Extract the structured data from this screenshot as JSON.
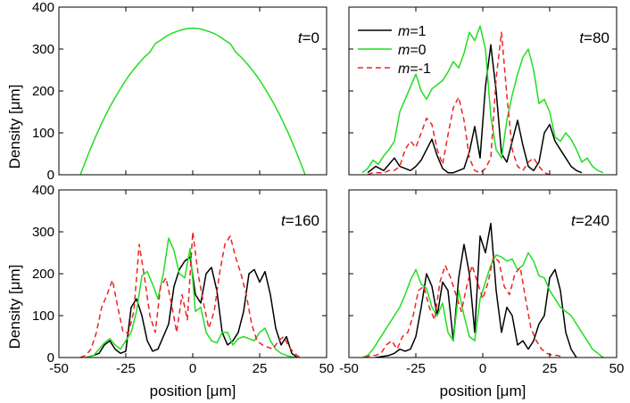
{
  "chart_data": {
    "type": "line",
    "title": "",
    "xlabel": "position [μm]",
    "ylabel": "Density  [μm]",
    "xlim": [
      -50,
      50
    ],
    "ylim": [
      0,
      400
    ],
    "xticks": [
      -50,
      -25,
      0,
      25,
      50
    ],
    "yticks": [
      0,
      100,
      200,
      300,
      400
    ],
    "legend": {
      "placement": "top-left of t=80 panel",
      "entries": [
        {
          "name": "m=1",
          "color": "#000000",
          "dash": "solid"
        },
        {
          "name": "m=0",
          "color": "#22dd22",
          "dash": "solid"
        },
        {
          "name": "m=-1",
          "color": "#ee2222",
          "dash": "dashed"
        }
      ]
    },
    "panels": [
      {
        "label": "t=0",
        "t_prefix": "t",
        "t_value": "=0",
        "series": [
          {
            "name": "m=0",
            "color": "#22dd22",
            "dash": "solid",
            "x": [
              -42,
              -40,
              -38,
              -36,
              -34,
              -32,
              -30,
              -28,
              -26,
              -24,
              -22,
              -20,
              -18,
              -16,
              -14,
              -12,
              -10,
              -8,
              -6,
              -4,
              -2,
              0,
              2,
              4,
              6,
              8,
              10,
              12,
              14,
              16,
              18,
              20,
              22,
              24,
              26,
              28,
              30,
              32,
              34,
              36,
              38,
              40,
              42
            ],
            "y": [
              0,
              33,
              65,
              95,
              123,
              149,
              173,
              195,
              216,
              235,
              252,
              267,
              281,
              293,
              313,
              321,
              330,
              337,
              342,
              346,
              349,
              350,
              349,
              346,
              342,
              337,
              330,
              321,
              313,
              293,
              281,
              267,
              252,
              235,
              216,
              195,
              173,
              149,
              123,
              95,
              65,
              33,
              0
            ]
          }
        ]
      },
      {
        "label": "t=80",
        "t_prefix": "t",
        "t_value": "=80",
        "series": [
          {
            "name": "m=1",
            "color": "#000000",
            "dash": "solid",
            "x": [
              -43,
              -40,
              -37,
              -35,
              -33,
              -31,
              -29,
              -27,
              -25,
              -23,
              -21,
              -19,
              -17,
              -15,
              -13,
              -11,
              -9,
              -7,
              -5,
              -3,
              -1,
              1,
              3,
              5,
              7,
              9,
              11,
              13,
              15,
              17,
              19,
              21,
              23,
              25,
              27,
              29,
              31,
              33,
              35,
              37
            ],
            "y": [
              5,
              20,
              10,
              25,
              40,
              20,
              15,
              10,
              20,
              35,
              60,
              85,
              45,
              15,
              5,
              5,
              10,
              15,
              55,
              115,
              40,
              210,
              310,
              200,
              50,
              30,
              80,
              130,
              70,
              20,
              10,
              30,
              100,
              120,
              80,
              60,
              40,
              20,
              10,
              5
            ]
          },
          {
            "name": "m=0",
            "color": "#22dd22",
            "dash": "solid",
            "x": [
              -45,
              -43,
              -41,
              -39,
              -37,
              -35,
              -33,
              -31,
              -29,
              -27,
              -25,
              -23,
              -21,
              -19,
              -17,
              -15,
              -13,
              -11,
              -9,
              -7,
              -5,
              -3,
              -1,
              1,
              3,
              5,
              7,
              9,
              11,
              13,
              15,
              17,
              19,
              21,
              23,
              25,
              27,
              29,
              31,
              33,
              35,
              37,
              39,
              41,
              43,
              45
            ],
            "y": [
              5,
              15,
              35,
              25,
              45,
              60,
              80,
              150,
              180,
              210,
              240,
              200,
              180,
              205,
              215,
              225,
              245,
              270,
              255,
              290,
              340,
              320,
              355,
              300,
              140,
              60,
              40,
              130,
              190,
              240,
              280,
              300,
              250,
              170,
              180,
              150,
              90,
              80,
              100,
              85,
              60,
              30,
              40,
              20,
              10,
              5
            ]
          },
          {
            "name": "m=-1",
            "color": "#ee2222",
            "dash": "dashed",
            "x": [
              -43,
              -41,
              -39,
              -37,
              -35,
              -33,
              -31,
              -29,
              -27,
              -25,
              -23,
              -21,
              -19,
              -17,
              -15,
              -13,
              -11,
              -9,
              -7,
              -5,
              -3,
              -1,
              1,
              3,
              5,
              7,
              9,
              11,
              13,
              15,
              17,
              19,
              21,
              23,
              25
            ],
            "y": [
              0,
              5,
              5,
              5,
              10,
              10,
              20,
              60,
              80,
              65,
              100,
              135,
              120,
              60,
              25,
              95,
              160,
              185,
              130,
              40,
              10,
              5,
              15,
              40,
              230,
              340,
              190,
              60,
              20,
              10,
              30,
              40,
              20,
              5,
              0
            ]
          }
        ]
      },
      {
        "label": "t=160",
        "t_prefix": "t",
        "t_value": "=160",
        "series": [
          {
            "name": "m=1",
            "color": "#000000",
            "dash": "solid",
            "x": [
              -40,
              -37,
              -35,
              -33,
              -31,
              -29,
              -27,
              -25,
              -23,
              -21,
              -19,
              -17,
              -15,
              -13,
              -11,
              -9,
              -7,
              -5,
              -3,
              -1,
              1,
              3,
              5,
              7,
              9,
              11,
              13,
              15,
              17,
              19,
              21,
              23,
              25,
              27,
              29,
              31,
              33,
              35,
              37,
              39
            ],
            "y": [
              0,
              5,
              10,
              30,
              40,
              20,
              10,
              15,
              120,
              140,
              100,
              40,
              15,
              20,
              50,
              80,
              170,
              210,
              230,
              240,
              150,
              130,
              200,
              215,
              160,
              60,
              30,
              40,
              60,
              110,
              200,
              210,
              180,
              205,
              150,
              70,
              30,
              50,
              10,
              0
            ]
          },
          {
            "name": "m=0",
            "color": "#22dd22",
            "dash": "solid",
            "x": [
              -40,
              -37,
              -35,
              -33,
              -31,
              -29,
              -27,
              -25,
              -23,
              -21,
              -19,
              -17,
              -15,
              -13,
              -11,
              -9,
              -7,
              -5,
              -3,
              -1,
              1,
              3,
              5,
              7,
              9,
              11,
              13,
              15,
              17,
              19,
              21,
              23,
              25,
              27,
              29,
              31,
              33,
              35,
              38
            ],
            "y": [
              0,
              5,
              20,
              35,
              45,
              30,
              20,
              40,
              60,
              110,
              195,
              205,
              175,
              140,
              200,
              285,
              255,
              200,
              190,
              260,
              110,
              120,
              60,
              40,
              35,
              60,
              60,
              30,
              45,
              50,
              45,
              40,
              60,
              70,
              40,
              20,
              10,
              5,
              0
            ]
          },
          {
            "name": "m=-1",
            "color": "#ee2222",
            "dash": "dashed",
            "x": [
              -42,
              -40,
              -38,
              -36,
              -34,
              -32,
              -30,
              -28,
              -26,
              -24,
              -22,
              -20,
              -18,
              -16,
              -14,
              -12,
              -10,
              -8,
              -6,
              -4,
              -2,
              0,
              2,
              4,
              6,
              8,
              10,
              12,
              14,
              16,
              18,
              20,
              22,
              24,
              26,
              28,
              30,
              32,
              34,
              36,
              38,
              40
            ],
            "y": [
              0,
              5,
              20,
              60,
              120,
              150,
              185,
              120,
              60,
              60,
              110,
              270,
              190,
              100,
              60,
              170,
              190,
              130,
              60,
              150,
              90,
              300,
              200,
              130,
              70,
              110,
              200,
              270,
              290,
              240,
              200,
              150,
              80,
              40,
              30,
              25,
              20,
              40,
              50,
              25,
              10,
              0
            ]
          }
        ]
      },
      {
        "label": "t=240",
        "t_prefix": "t",
        "t_value": "=240",
        "series": [
          {
            "name": "m=1",
            "color": "#000000",
            "dash": "solid",
            "x": [
              -40,
              -35,
              -33,
              -31,
              -29,
              -27,
              -25,
              -23,
              -21,
              -19,
              -17,
              -15,
              -13,
              -11,
              -9,
              -7,
              -5,
              -3,
              -1,
              1,
              3,
              5,
              7,
              9,
              11,
              13,
              15,
              17,
              19,
              21,
              23,
              25,
              27,
              29,
              31,
              33,
              35
            ],
            "y": [
              0,
              5,
              10,
              20,
              15,
              20,
              50,
              120,
              200,
              170,
              100,
              180,
              160,
              40,
              190,
              270,
              200,
              60,
              290,
              250,
              320,
              160,
              60,
              120,
              100,
              30,
              40,
              20,
              40,
              80,
              100,
              190,
              210,
              160,
              60,
              20,
              0
            ]
          },
          {
            "name": "m=0",
            "color": "#22dd22",
            "dash": "solid",
            "x": [
              -45,
              -43,
              -41,
              -39,
              -37,
              -35,
              -33,
              -31,
              -29,
              -27,
              -25,
              -23,
              -21,
              -19,
              -17,
              -15,
              -13,
              -11,
              -9,
              -7,
              -5,
              -3,
              -1,
              1,
              3,
              5,
              7,
              9,
              11,
              13,
              15,
              17,
              19,
              21,
              23,
              25,
              27,
              29,
              31,
              33,
              35,
              37,
              39,
              41,
              43,
              45
            ],
            "y": [
              0,
              5,
              20,
              40,
              60,
              80,
              100,
              120,
              150,
              185,
              210,
              175,
              165,
              120,
              100,
              130,
              60,
              40,
              160,
              100,
              50,
              40,
              140,
              180,
              220,
              245,
              240,
              230,
              235,
              210,
              220,
              250,
              230,
              195,
              190,
              160,
              140,
              120,
              110,
              100,
              80,
              60,
              40,
              20,
              10,
              0
            ]
          },
          {
            "name": "m=-1",
            "color": "#ee2222",
            "dash": "dashed",
            "x": [
              -44,
              -42,
              -40,
              -38,
              -36,
              -34,
              -32,
              -30,
              -28,
              -26,
              -24,
              -22,
              -20,
              -18,
              -16,
              -14,
              -12,
              -10,
              -8,
              -6,
              -4,
              -2,
              0,
              2,
              4,
              6,
              8,
              10,
              12,
              14,
              16,
              18,
              20,
              22,
              24,
              26,
              28,
              30
            ],
            "y": [
              0,
              5,
              5,
              10,
              30,
              40,
              20,
              50,
              60,
              100,
              160,
              170,
              120,
              90,
              180,
              220,
              190,
              150,
              110,
              170,
              220,
              180,
              140,
              180,
              240,
              230,
              170,
              150,
              200,
              215,
              140,
              70,
              40,
              20,
              10,
              5,
              5,
              0
            ]
          }
        ]
      }
    ]
  }
}
